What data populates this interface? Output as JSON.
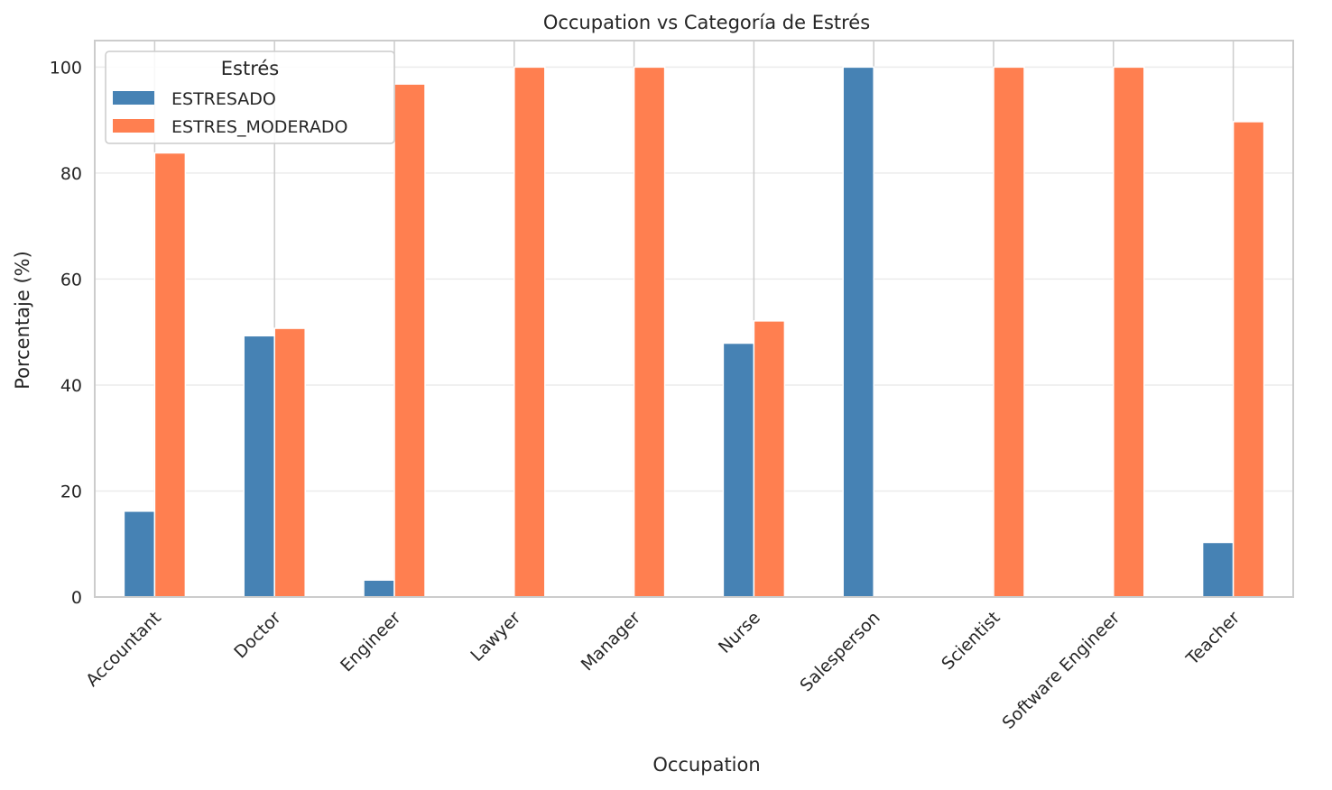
{
  "chart_data": {
    "type": "bar",
    "title": "Occupation vs Categoría de Estrés",
    "xlabel": "Occupation",
    "ylabel": "Porcentaje (%)",
    "categories": [
      "Accountant",
      "Doctor",
      "Engineer",
      "Lawyer",
      "Manager",
      "Nurse",
      "Salesperson",
      "Scientist",
      "Software Engineer",
      "Teacher"
    ],
    "series": [
      {
        "name": "ESTRESADO",
        "color": "#4682b4",
        "values": [
          16.2,
          49.3,
          3.2,
          0,
          0,
          47.9,
          100,
          0,
          0,
          10.3
        ]
      },
      {
        "name": "ESTRES_MODERADO",
        "color": "#ff7f50",
        "values": [
          83.8,
          50.7,
          96.8,
          100,
          100,
          52.1,
          0,
          100,
          100,
          89.7
        ]
      }
    ],
    "ylim": [
      0,
      105
    ],
    "yticks": [
      0,
      20,
      40,
      60,
      80,
      100
    ],
    "grid": true,
    "legend": {
      "title": "Estrés",
      "position": "top-left"
    }
  }
}
